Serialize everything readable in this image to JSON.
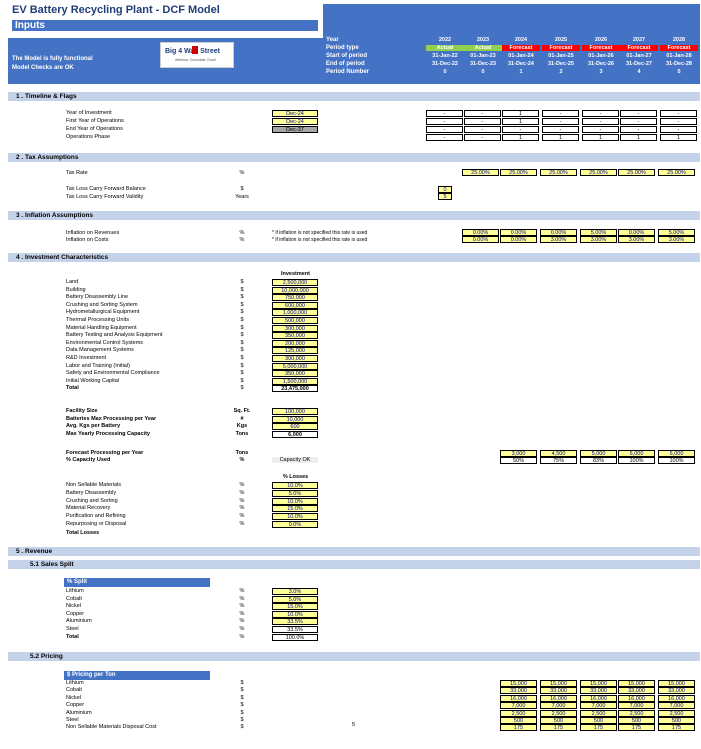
{
  "header": {
    "title": "EV Battery Recycling Plant - DCF Model",
    "subtitle": "Inputs",
    "status_lines": [
      "The Model is fully functional",
      "Model Checks are OK"
    ],
    "logo_text": "Big 4 Wall Street",
    "logo_sub": "Webinar, Consulate, Excel",
    "row_labels": [
      "Year",
      "Period type",
      "Start of period",
      "End of period",
      "Period Number"
    ],
    "years": [
      "2022",
      "2023",
      "2024",
      "2025",
      "2026",
      "2027",
      "2028"
    ],
    "period_types": [
      "Actual",
      "Actual",
      "Forecast",
      "Forecast",
      "Forecast",
      "Forecast",
      "Forecast"
    ],
    "start": [
      "31-Jan-22",
      "01-Jan-23",
      "01-Jan-24",
      "01-Jan-25",
      "01-Jan-26",
      "01-Jan-27",
      "01-Jan-28"
    ],
    "end": [
      "31-Dec-22",
      "31-Dec-23",
      "31-Dec-24",
      "31-Dec-25",
      "31-Dec-26",
      "31-Dec-27",
      "31-Dec-28"
    ],
    "period_number": [
      "0",
      "0",
      "1",
      "2",
      "3",
      "4",
      "5"
    ]
  },
  "s1": {
    "title": "1 . Timeline & Flags",
    "labels": [
      "Year of Investment",
      "First Year of Operations",
      "End Year of Operations",
      "Operations Phase"
    ],
    "values": [
      "Dec-24",
      "Dec-24",
      "Dec-37",
      ""
    ],
    "flags": [
      [
        "-",
        "-",
        "1",
        "-",
        "-",
        "-",
        "-"
      ],
      [
        "-",
        "-",
        "1",
        "-",
        "-",
        "-",
        "-"
      ],
      [
        "-",
        "-",
        "-",
        "-",
        "-",
        "-",
        "-"
      ],
      [
        "-",
        "-",
        "1",
        "1",
        "1",
        "1",
        "1"
      ]
    ]
  },
  "s2": {
    "title": "2 . Tax Assumptions",
    "tax_rate_label": "Tax Rate",
    "tax_rate_unit": "%",
    "tax_rates": [
      "25.00%",
      "25.00%",
      "25.00%",
      "25.00%",
      "25.00%",
      "25.00%"
    ],
    "tlcf_label": "Tax Loss Carry Forward Balance",
    "tlcf_unit": "$",
    "tlcf_value": "0",
    "tlcfv_label": "Tax Loss Carry Forward Validity",
    "tlcfv_unit": "Years",
    "tlcfv_value": "5"
  },
  "s3": {
    "title": "3 . Inflation Assumptions",
    "rev_label": "Inflation on Revenues",
    "cost_label": "Inflation on Costs",
    "unit": "%",
    "note": "* if inflation is not specified this rate is used",
    "rev": [
      "0.00%",
      "0.00%",
      "0.00%",
      "5.00%",
      "0.00%",
      "5.00%"
    ],
    "cost": [
      "0.00%",
      "0.00%",
      "3.00%",
      "3.00%",
      "3.00%",
      "3.00%"
    ]
  },
  "s4": {
    "title": "4 . Investment Characteristics",
    "inv_header": "Investment",
    "items": [
      [
        "Land",
        "2,500,000"
      ],
      [
        "Building",
        "10,000,000"
      ],
      [
        "Battery Disassembly Line",
        "750,000"
      ],
      [
        "Crushing and Sorting System",
        "600,000"
      ],
      [
        "Hydrometallurgical Equipment",
        "1,000,000"
      ],
      [
        "Thermal Processing Units",
        "500,000"
      ],
      [
        "Material Handling Equipment",
        "300,000"
      ],
      [
        "Battery Testing and Analysis Equipment",
        "350,000"
      ],
      [
        "Environmental Control Systems",
        "200,000"
      ],
      [
        "Data Management Systems",
        "125,000"
      ],
      [
        "R&D Investment",
        "300,000"
      ],
      [
        "Labor and Training (Initial)",
        "5,000,000"
      ],
      [
        "Safety and Environmental Compliance",
        "350,000"
      ],
      [
        "Initial Working Capital",
        "1,500,000"
      ]
    ],
    "total_label": "Total",
    "total_value": "23,475,000",
    "unit": "$",
    "facility": [
      [
        "Facility Size",
        "Sq. Ft.",
        "100,000"
      ],
      [
        "Batteries Max Processing per Year",
        "#",
        "10,000"
      ],
      [
        "Avg. Kgs per Battery",
        "Kgs",
        "600"
      ],
      [
        "Max Yearly Processing Capacity",
        "Tons",
        "6,000"
      ]
    ],
    "forecast_label": "Forecast Processing per Year",
    "forecast_unit": "Tons",
    "capacity_label": "% Capacity Used",
    "capacity_unit": "%",
    "capacity_ok": "Capacity OK",
    "forecast": [
      "3,000",
      "4,500",
      "5,000",
      "6,000",
      "6,000"
    ],
    "capacity": [
      "50%",
      "75%",
      "83%",
      "100%",
      "100%"
    ],
    "loss_header": "% Losses",
    "losses": [
      [
        "Non Sellable Materials",
        "10.0%"
      ],
      [
        "Battery Disassembly",
        "5.0%"
      ],
      [
        "Crushing and Sorting",
        "10.0%"
      ],
      [
        "Material Recovery",
        "15.0%"
      ],
      [
        "Purification and Refining",
        "10.0%"
      ],
      [
        "Repurposing or Disposal",
        "0.0%"
      ]
    ],
    "loss_total": "Total Losses"
  },
  "s5": {
    "title": "5 . Revenue",
    "split_title": "5.1   Sales Split",
    "split_header": "% Split",
    "split": [
      [
        "Lithium",
        "3.0%"
      ],
      [
        "Cobalt",
        "5.0%"
      ],
      [
        "Nickel",
        "15.0%"
      ],
      [
        "Copper",
        "10.0%"
      ],
      [
        "Aluminium",
        "33.5%"
      ],
      [
        "Steel",
        "33.5%"
      ],
      [
        "Total",
        "100.0%"
      ]
    ],
    "pricing_title": "5.2   Pricing",
    "pricing_header": "$ Pricing per Ton",
    "pricing": [
      [
        "Lithium",
        "15,000"
      ],
      [
        "Cobalt",
        "33,000"
      ],
      [
        "Nickel",
        "16,000"
      ],
      [
        "Copper",
        "7,000"
      ],
      [
        "Aluminium",
        "2,500"
      ],
      [
        "Steel",
        "500"
      ],
      [
        "Non Sellable Materials Disposal Cost",
        "175"
      ]
    ],
    "page_no": "5"
  },
  "colors": {
    "header_blue": "#4472c4",
    "section": "#c5d3ea",
    "input_yellow": "#ffff99",
    "actual": "#92d050",
    "forecast": "#ff0000"
  }
}
